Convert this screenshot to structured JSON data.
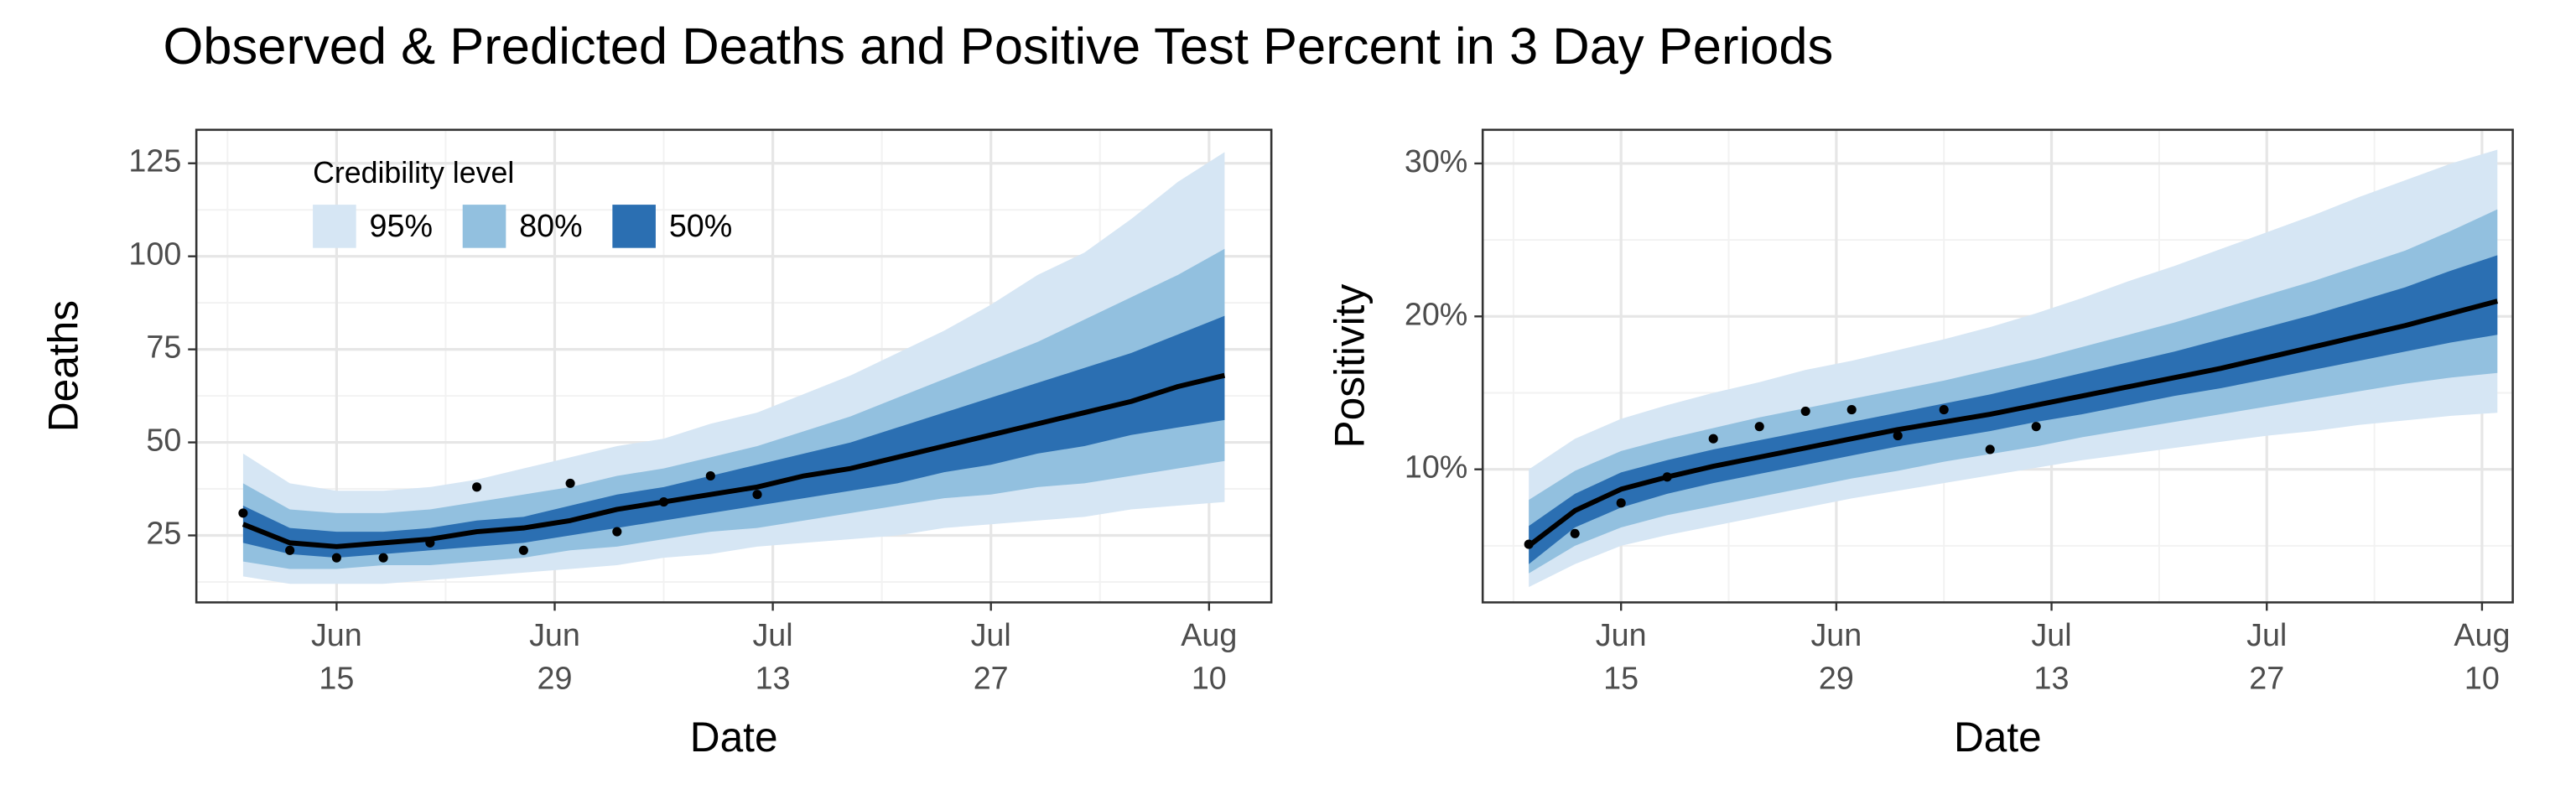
{
  "title": "Observed & Predicted Deaths and Positive Test Percent in 3 Day Periods",
  "chart_data": [
    {
      "type": "line",
      "x_label": "Date",
      "y_label": "Deaths",
      "legend_title": "Credibility level",
      "grid": true,
      "xlim": [
        "Jun 6",
        "Aug 14"
      ],
      "ylim": [
        7,
        134
      ],
      "yticks": [
        25,
        50,
        75,
        100,
        125
      ],
      "xticks": [
        {
          "value": "Jun 15",
          "label": "Jun\n15"
        },
        {
          "value": "Jun 29",
          "label": "Jun\n29"
        },
        {
          "value": "Jul 13",
          "label": "Jul\n13"
        },
        {
          "value": "Jul 27",
          "label": "Jul\n27"
        },
        {
          "value": "Aug 10",
          "label": "Aug\n10"
        }
      ],
      "x": [
        "Jun 9",
        "Jun 12",
        "Jun 15",
        "Jun 18",
        "Jun 21",
        "Jun 24",
        "Jun 27",
        "Jun 30",
        "Jul 3",
        "Jul 6",
        "Jul 9",
        "Jul 12",
        "Jul 15",
        "Jul 18",
        "Jul 21",
        "Jul 24",
        "Jul 27",
        "Jul 30",
        "Aug 2",
        "Aug 5",
        "Aug 8",
        "Aug 11"
      ],
      "bands": [
        {
          "name": "95%",
          "color": "#d6e6f4",
          "upper": [
            47,
            39,
            37,
            37,
            38,
            40,
            43,
            46,
            49,
            51,
            55,
            58,
            63,
            68,
            74,
            80,
            87,
            95,
            101,
            110,
            120,
            128
          ],
          "lower": [
            14,
            12,
            12,
            12,
            13,
            14,
            15,
            16,
            17,
            19,
            20,
            22,
            23,
            24,
            25,
            27,
            28,
            29,
            30,
            32,
            33,
            34
          ]
        },
        {
          "name": "80%",
          "color": "#92c0df",
          "upper": [
            39,
            32,
            31,
            31,
            32,
            34,
            36,
            38,
            41,
            43,
            46,
            49,
            53,
            57,
            62,
            67,
            72,
            77,
            83,
            89,
            95,
            102
          ],
          "lower": [
            18,
            16,
            16,
            17,
            17,
            18,
            19,
            21,
            22,
            24,
            26,
            27,
            29,
            31,
            33,
            35,
            36,
            38,
            39,
            41,
            43,
            45
          ]
        },
        {
          "name": "50%",
          "color": "#2b6fb2",
          "upper": [
            33,
            27,
            26,
            26,
            27,
            29,
            30,
            33,
            36,
            38,
            41,
            44,
            47,
            50,
            54,
            58,
            62,
            66,
            70,
            74,
            79,
            84
          ],
          "lower": [
            23,
            20,
            19,
            20,
            21,
            22,
            23,
            25,
            27,
            29,
            31,
            33,
            35,
            37,
            39,
            42,
            44,
            47,
            49,
            52,
            54,
            56
          ]
        }
      ],
      "median": {
        "color": "#000000",
        "values": [
          28,
          23,
          22,
          23,
          24,
          26,
          27,
          29,
          32,
          34,
          36,
          38,
          41,
          43,
          46,
          49,
          52,
          55,
          58,
          61,
          65,
          68
        ]
      },
      "observed": {
        "color": "#000000",
        "x": [
          "Jun 9",
          "Jun 12",
          "Jun 15",
          "Jun 18",
          "Jun 21",
          "Jun 24",
          "Jun 27",
          "Jun 30",
          "Jul 3",
          "Jul 6",
          "Jul 9",
          "Jul 12"
        ],
        "values": [
          31,
          21,
          19,
          19,
          23,
          38,
          21,
          39,
          26,
          34,
          41,
          36
        ]
      }
    },
    {
      "type": "line",
      "x_label": "Date",
      "y_label": "Positivity",
      "grid": true,
      "xlim": [
        "Jun 6",
        "Aug 12"
      ],
      "ylim": [
        1.3,
        32.2
      ],
      "yticks": [
        {
          "value": 10,
          "label": "10%"
        },
        {
          "value": 20,
          "label": "20%"
        },
        {
          "value": 30,
          "label": "30%"
        }
      ],
      "xticks": [
        {
          "value": "Jun 15",
          "label": "Jun\n15"
        },
        {
          "value": "Jun 29",
          "label": "Jun\n29"
        },
        {
          "value": "Jul 13",
          "label": "Jul\n13"
        },
        {
          "value": "Jul 27",
          "label": "Jul\n27"
        },
        {
          "value": "Aug 10",
          "label": "Aug\n10"
        }
      ],
      "x": [
        "Jun 9",
        "Jun 12",
        "Jun 15",
        "Jun 18",
        "Jun 21",
        "Jun 24",
        "Jun 27",
        "Jun 30",
        "Jul 3",
        "Jul 6",
        "Jul 9",
        "Jul 12",
        "Jul 15",
        "Jul 18",
        "Jul 21",
        "Jul 24",
        "Jul 27",
        "Jul 30",
        "Aug 2",
        "Aug 5",
        "Aug 8",
        "Aug 11"
      ],
      "bands": [
        {
          "color": "#d6e6f4",
          "upper": [
            10,
            12,
            13.3,
            14.2,
            15,
            15.7,
            16.5,
            17.1,
            17.8,
            18.5,
            19.3,
            20.2,
            21.2,
            22.3,
            23.3,
            24.4,
            25.5,
            26.6,
            27.8,
            28.9,
            30,
            30.9
          ],
          "lower": [
            2.3,
            3.8,
            5,
            5.7,
            6.3,
            6.9,
            7.5,
            8.1,
            8.6,
            9.1,
            9.6,
            10.1,
            10.6,
            11,
            11.4,
            11.8,
            12.2,
            12.5,
            12.9,
            13.2,
            13.5,
            13.7
          ]
        },
        {
          "color": "#92c0df",
          "upper": [
            8,
            9.9,
            11.2,
            12,
            12.7,
            13.4,
            14,
            14.6,
            15.2,
            15.8,
            16.5,
            17.2,
            18,
            18.8,
            19.6,
            20.5,
            21.4,
            22.3,
            23.3,
            24.3,
            25.6,
            27
          ],
          "lower": [
            3.2,
            5,
            6.2,
            7,
            7.6,
            8.2,
            8.8,
            9.4,
            9.9,
            10.5,
            11,
            11.5,
            12.1,
            12.6,
            13.1,
            13.6,
            14.1,
            14.6,
            15.1,
            15.6,
            16,
            16.3
          ]
        },
        {
          "color": "#2b6fb2",
          "upper": [
            6.3,
            8.4,
            9.8,
            10.6,
            11.3,
            11.9,
            12.5,
            13.1,
            13.7,
            14.3,
            14.9,
            15.6,
            16.3,
            17,
            17.7,
            18.5,
            19.3,
            20.1,
            21,
            21.9,
            23,
            24
          ],
          "lower": [
            3.8,
            6.2,
            7.5,
            8.4,
            9.1,
            9.7,
            10.3,
            10.9,
            11.5,
            12,
            12.5,
            13.1,
            13.6,
            14.2,
            14.8,
            15.3,
            15.9,
            16.5,
            17.1,
            17.7,
            18.3,
            18.8
          ]
        }
      ],
      "median": {
        "color": "#000000",
        "values": [
          5,
          7.3,
          8.7,
          9.5,
          10.2,
          10.8,
          11.4,
          12,
          12.6,
          13.1,
          13.6,
          14.2,
          14.8,
          15.4,
          16,
          16.6,
          17.3,
          18,
          18.7,
          19.4,
          20.2,
          21
        ]
      },
      "observed": {
        "color": "#000000",
        "x": [
          "Jun 9",
          "Jun 12",
          "Jun 15",
          "Jun 18",
          "Jun 21",
          "Jun 24",
          "Jun 27",
          "Jun 30",
          "Jul 3",
          "Jul 6",
          "Jul 9",
          "Jul 12"
        ],
        "values": [
          5.1,
          5.8,
          7.8,
          9.5,
          12,
          12.8,
          13.8,
          13.9,
          12.2,
          13.9,
          11.3,
          12.8
        ]
      }
    }
  ]
}
